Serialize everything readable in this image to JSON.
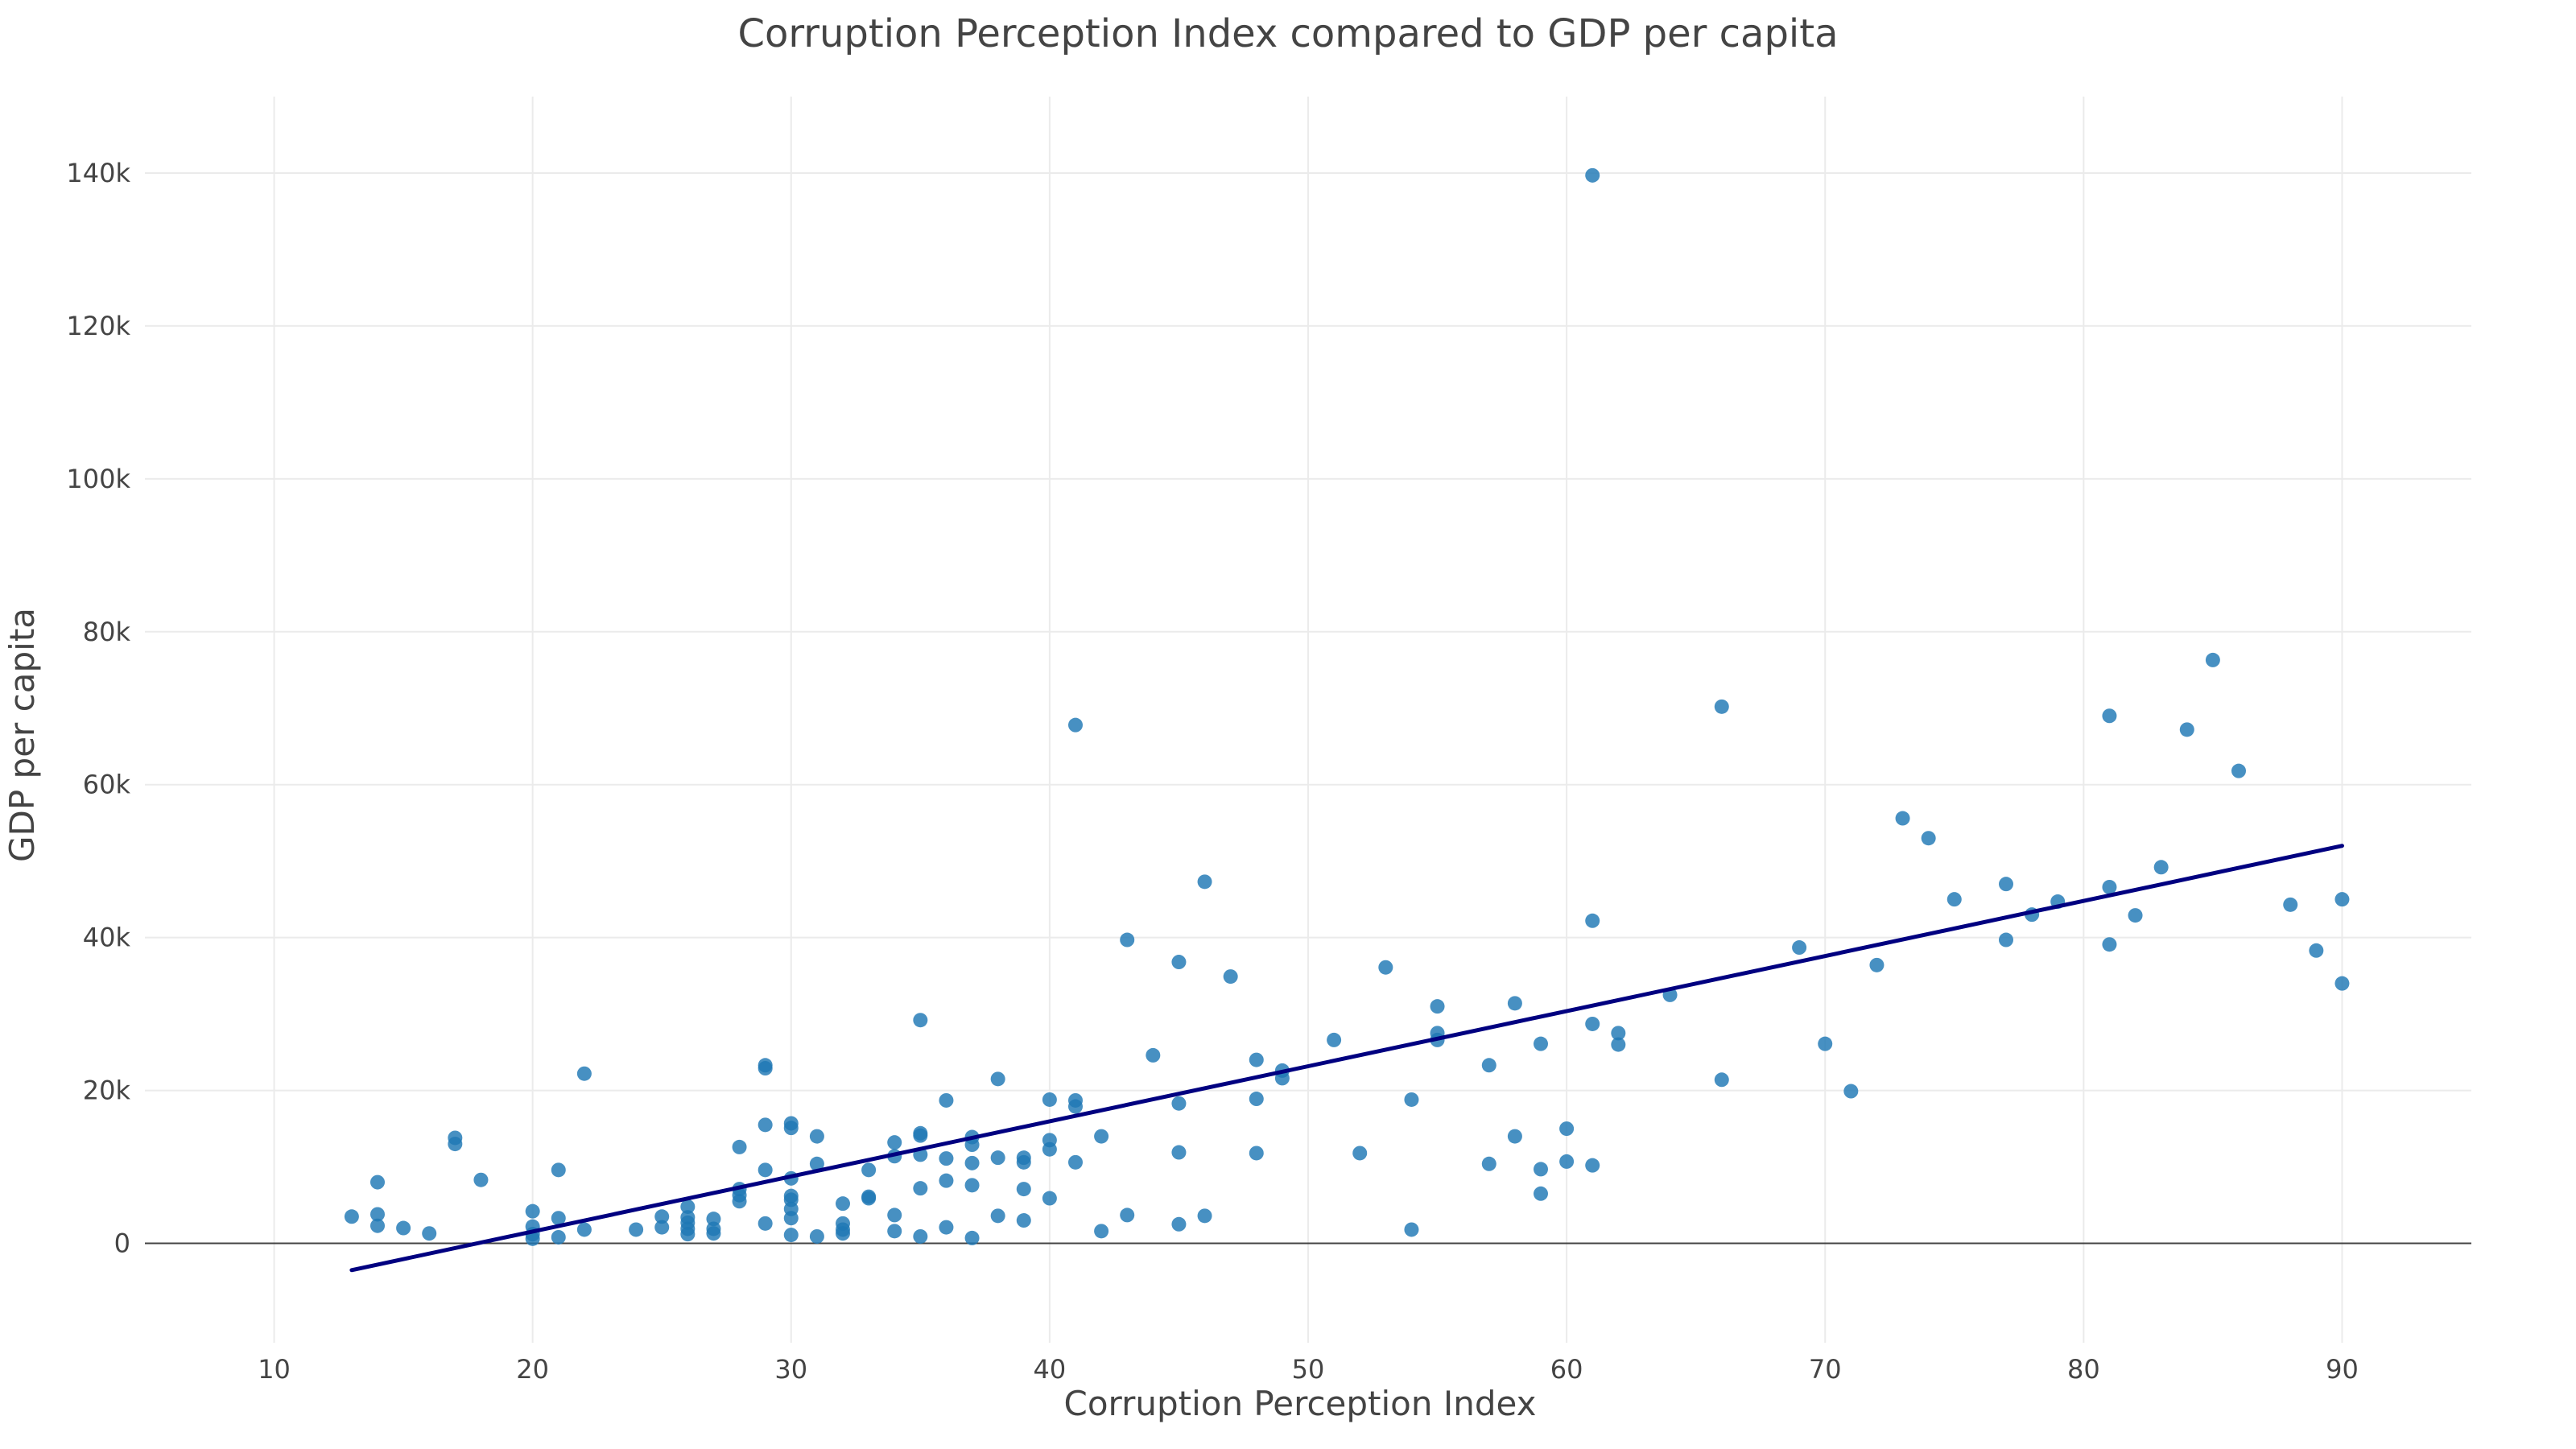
{
  "chart_data": {
    "type": "scatter",
    "title": "Corruption Perception Index compared to GDP per capita",
    "xlabel": "Corruption Perception Index",
    "ylabel": "GDP per capita",
    "xlim": [
      5,
      95
    ],
    "ylim": [
      -13000,
      150000
    ],
    "xticks": [
      10,
      20,
      30,
      40,
      50,
      60,
      70,
      80,
      90
    ],
    "xtick_labels": [
      "10",
      "20",
      "30",
      "40",
      "50",
      "60",
      "70",
      "80",
      "90"
    ],
    "yticks": [
      0,
      20000,
      40000,
      60000,
      80000,
      100000,
      120000,
      140000
    ],
    "ytick_labels": [
      "0",
      "20k",
      "40k",
      "60k",
      "80k",
      "100k",
      "120k",
      "140k"
    ],
    "grid": true,
    "point_color": "#1f77b4",
    "trend_color": "#000080",
    "trendline": {
      "x": [
        13,
        90
      ],
      "y": [
        -3500,
        52000
      ]
    },
    "points": [
      [
        13,
        3500
      ],
      [
        14,
        8000
      ],
      [
        14,
        3800
      ],
      [
        14,
        2300
      ],
      [
        15,
        2000
      ],
      [
        16,
        1300
      ],
      [
        17,
        13800
      ],
      [
        17,
        13000
      ],
      [
        18,
        8300
      ],
      [
        20,
        4200
      ],
      [
        20,
        2200
      ],
      [
        20,
        1200
      ],
      [
        20,
        600
      ],
      [
        21,
        9600
      ],
      [
        21,
        3300
      ],
      [
        21,
        800
      ],
      [
        22,
        22200
      ],
      [
        22,
        1800
      ],
      [
        24,
        1800
      ],
      [
        25,
        3500
      ],
      [
        25,
        2100
      ],
      [
        26,
        4800
      ],
      [
        26,
        3400
      ],
      [
        26,
        2700
      ],
      [
        26,
        1900
      ],
      [
        26,
        1200
      ],
      [
        27,
        3200
      ],
      [
        27,
        1900
      ],
      [
        27,
        1300
      ],
      [
        28,
        12600
      ],
      [
        28,
        7100
      ],
      [
        28,
        6300
      ],
      [
        28,
        5500
      ],
      [
        29,
        23300
      ],
      [
        29,
        22900
      ],
      [
        29,
        15500
      ],
      [
        29,
        9600
      ],
      [
        29,
        2600
      ],
      [
        30,
        15700
      ],
      [
        30,
        15100
      ],
      [
        30,
        8500
      ],
      [
        30,
        6200
      ],
      [
        30,
        5700
      ],
      [
        30,
        4500
      ],
      [
        30,
        3300
      ],
      [
        30,
        1100
      ],
      [
        31,
        14000
      ],
      [
        31,
        10400
      ],
      [
        31,
        900
      ],
      [
        32,
        5200
      ],
      [
        32,
        2600
      ],
      [
        32,
        1800
      ],
      [
        32,
        1300
      ],
      [
        33,
        9600
      ],
      [
        33,
        6100
      ],
      [
        33,
        5900
      ],
      [
        34,
        13200
      ],
      [
        34,
        11400
      ],
      [
        34,
        3700
      ],
      [
        34,
        1600
      ],
      [
        35,
        29200
      ],
      [
        35,
        14400
      ],
      [
        35,
        14100
      ],
      [
        35,
        11600
      ],
      [
        35,
        7200
      ],
      [
        35,
        900
      ],
      [
        36,
        18700
      ],
      [
        36,
        11100
      ],
      [
        36,
        8200
      ],
      [
        36,
        2100
      ],
      [
        37,
        13900
      ],
      [
        37,
        12900
      ],
      [
        37,
        10500
      ],
      [
        37,
        7600
      ],
      [
        37,
        700
      ],
      [
        38,
        21500
      ],
      [
        38,
        11200
      ],
      [
        38,
        3600
      ],
      [
        39,
        11200
      ],
      [
        39,
        10600
      ],
      [
        39,
        7100
      ],
      [
        39,
        3000
      ],
      [
        40,
        18800
      ],
      [
        40,
        13500
      ],
      [
        40,
        12300
      ],
      [
        40,
        5900
      ],
      [
        41,
        67800
      ],
      [
        41,
        18700
      ],
      [
        41,
        17900
      ],
      [
        41,
        10600
      ],
      [
        42,
        14000
      ],
      [
        42,
        1600
      ],
      [
        43,
        39700
      ],
      [
        43,
        3700
      ],
      [
        44,
        24600
      ],
      [
        45,
        36800
      ],
      [
        45,
        18300
      ],
      [
        45,
        11900
      ],
      [
        45,
        2500
      ],
      [
        46,
        47300
      ],
      [
        46,
        3600
      ],
      [
        47,
        34900
      ],
      [
        48,
        24000
      ],
      [
        48,
        18900
      ],
      [
        48,
        11800
      ],
      [
        49,
        22600
      ],
      [
        49,
        21600
      ],
      [
        51,
        26600
      ],
      [
        52,
        11800
      ],
      [
        53,
        36100
      ],
      [
        54,
        18800
      ],
      [
        54,
        1800
      ],
      [
        55,
        31000
      ],
      [
        55,
        27500
      ],
      [
        55,
        26600
      ],
      [
        57,
        23300
      ],
      [
        57,
        10400
      ],
      [
        58,
        31400
      ],
      [
        58,
        14000
      ],
      [
        59,
        26100
      ],
      [
        59,
        9700
      ],
      [
        59,
        6500
      ],
      [
        60,
        15000
      ],
      [
        60,
        10700
      ],
      [
        61,
        139700
      ],
      [
        61,
        42200
      ],
      [
        61,
        28700
      ],
      [
        61,
        10200
      ],
      [
        62,
        27500
      ],
      [
        62,
        26000
      ],
      [
        64,
        32500
      ],
      [
        66,
        70200
      ],
      [
        66,
        21400
      ],
      [
        69,
        38700
      ],
      [
        70,
        26100
      ],
      [
        71,
        19900
      ],
      [
        72,
        36400
      ],
      [
        73,
        55600
      ],
      [
        74,
        53000
      ],
      [
        75,
        45000
      ],
      [
        77,
        47000
      ],
      [
        77,
        39700
      ],
      [
        78,
        43000
      ],
      [
        79,
        44700
      ],
      [
        81,
        69000
      ],
      [
        81,
        46600
      ],
      [
        81,
        39100
      ],
      [
        82,
        42900
      ],
      [
        83,
        49200
      ],
      [
        84,
        67200
      ],
      [
        85,
        76300
      ],
      [
        86,
        61800
      ],
      [
        88,
        44300
      ],
      [
        89,
        38300
      ],
      [
        90,
        45000
      ],
      [
        90,
        34000
      ]
    ]
  }
}
